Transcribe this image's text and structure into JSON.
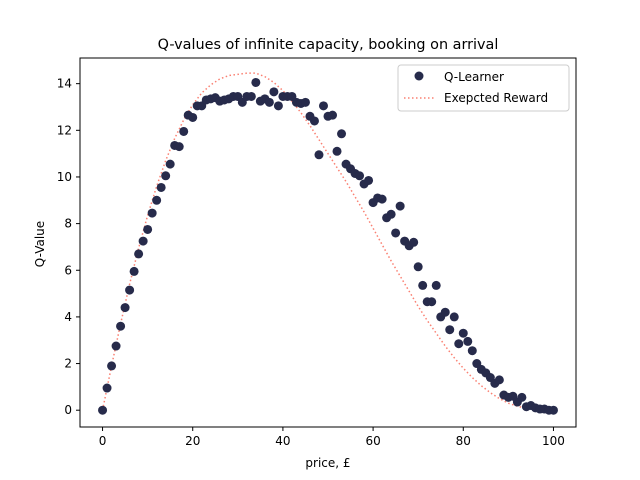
{
  "chart_data": {
    "type": "scatter",
    "title": "Q-values of infinite capacity, booking on arrival",
    "xlabel": "price, £",
    "ylabel": "Q-Value",
    "xlim": [
      -5,
      105
    ],
    "ylim": [
      -0.72,
      15.1
    ],
    "xticks": [
      0,
      20,
      40,
      60,
      80,
      100
    ],
    "yticks": [
      0,
      2,
      4,
      6,
      8,
      10,
      12,
      14
    ],
    "grid": false,
    "legend_position": "upper right",
    "series": [
      {
        "name": "Q-Learner",
        "kind": "scatter",
        "color": "#272b4b",
        "x": [
          0,
          1,
          2,
          3,
          4,
          5,
          6,
          7,
          8,
          9,
          10,
          11,
          12,
          13,
          14,
          15,
          16,
          17,
          18,
          19,
          20,
          21,
          22,
          23,
          24,
          25,
          26,
          27,
          28,
          29,
          30,
          31,
          32,
          33,
          34,
          35,
          36,
          37,
          38,
          39,
          40,
          41,
          42,
          43,
          44,
          45,
          46,
          47,
          48,
          49,
          50,
          51,
          52,
          53,
          54,
          55,
          56,
          57,
          58,
          59,
          60,
          61,
          62,
          63,
          64,
          65,
          66,
          67,
          68,
          69,
          70,
          71,
          72,
          73,
          74,
          75,
          76,
          77,
          78,
          79,
          80,
          81,
          82,
          83,
          84,
          85,
          86,
          87,
          88,
          89,
          90,
          91,
          92,
          93,
          94,
          95,
          96,
          97,
          98,
          99,
          100
        ],
        "y": [
          0.0,
          0.95,
          1.9,
          2.75,
          3.6,
          4.4,
          5.15,
          5.95,
          6.7,
          7.25,
          7.75,
          8.45,
          9.0,
          9.55,
          10.05,
          10.55,
          11.35,
          11.3,
          11.95,
          12.65,
          12.55,
          13.05,
          13.05,
          13.3,
          13.35,
          13.4,
          13.25,
          13.3,
          13.35,
          13.45,
          13.45,
          13.2,
          13.45,
          13.45,
          14.05,
          13.25,
          13.35,
          13.2,
          13.65,
          13.05,
          13.45,
          13.45,
          13.45,
          13.2,
          13.15,
          13.2,
          12.6,
          12.4,
          10.95,
          13.05,
          12.6,
          12.65,
          11.1,
          11.85,
          10.55,
          10.35,
          10.15,
          10.05,
          9.7,
          9.85,
          8.9,
          9.1,
          9.05,
          8.25,
          8.4,
          7.6,
          8.75,
          7.25,
          7.05,
          7.2,
          6.15,
          5.35,
          4.65,
          4.65,
          5.35,
          4.0,
          4.2,
          3.45,
          4.0,
          2.85,
          3.3,
          2.95,
          2.55,
          2.0,
          1.75,
          1.6,
          1.4,
          1.15,
          1.3,
          0.65,
          0.55,
          0.6,
          0.35,
          0.55,
          0.15,
          0.2,
          0.1,
          0.05,
          0.05,
          0.0,
          0.0
        ]
      },
      {
        "name": "Exepcted Reward",
        "kind": "line",
        "style": "dotted",
        "color": "#fa8072",
        "x": [
          0,
          2,
          4,
          6,
          8,
          10,
          12,
          14,
          16,
          18,
          20,
          22,
          24,
          26,
          28,
          30,
          32,
          34,
          36,
          38,
          40,
          42,
          44,
          46,
          48,
          50,
          52,
          54,
          56,
          58,
          60,
          62,
          64,
          66,
          68,
          70,
          72,
          74,
          76,
          78,
          80,
          82,
          84,
          86,
          88,
          90,
          92,
          94,
          96,
          98,
          100
        ],
        "y": [
          0.0,
          1.9,
          3.7,
          5.4,
          6.95,
          8.35,
          9.6,
          10.7,
          11.65,
          12.45,
          13.1,
          13.6,
          13.95,
          14.2,
          14.35,
          14.4,
          14.45,
          14.45,
          14.3,
          14.05,
          13.7,
          13.25,
          12.75,
          12.2,
          11.6,
          11.0,
          10.4,
          9.8,
          9.15,
          8.5,
          7.8,
          7.1,
          6.4,
          5.75,
          5.1,
          4.45,
          3.85,
          3.3,
          2.75,
          2.25,
          1.8,
          1.4,
          1.05,
          0.75,
          0.5,
          0.3,
          0.17,
          0.08,
          0.03,
          0.01,
          0.0
        ]
      }
    ]
  }
}
